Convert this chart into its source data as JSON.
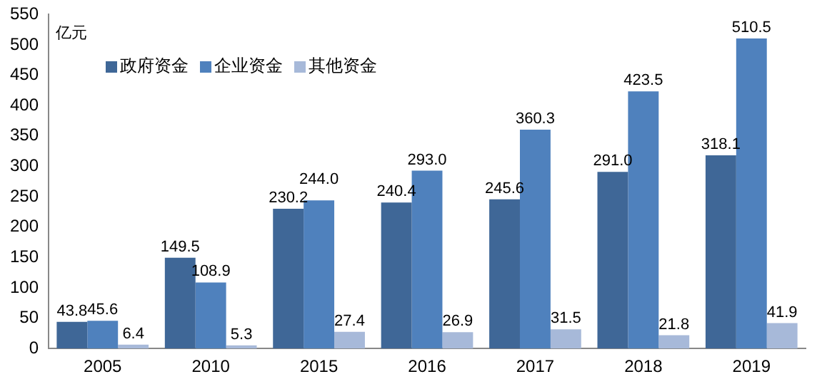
{
  "chart_data": {
    "type": "bar",
    "ylabel": "亿元",
    "categories": [
      "2005",
      "2010",
      "2015",
      "2016",
      "2017",
      "2018",
      "2019"
    ],
    "series": [
      {
        "name": "政府资金",
        "color": "#3f6797",
        "values": [
          43.8,
          149.5,
          230.2,
          240.4,
          245.6,
          291.0,
          318.1
        ],
        "value_labels": [
          "43.8",
          "149.5",
          "230.2",
          "240.4",
          "245.6",
          "291.0",
          "318.1"
        ]
      },
      {
        "name": "企业资金",
        "color": "#4f81bd",
        "values": [
          45.6,
          108.9,
          244.0,
          293.0,
          360.3,
          423.5,
          510.5
        ],
        "value_labels": [
          "45.6",
          "108.9",
          "244.0",
          "293.0",
          "360.3",
          "423.5",
          "510.5"
        ]
      },
      {
        "name": "其他资金",
        "color": "#a7b9d9",
        "values": [
          6.4,
          5.3,
          27.4,
          26.9,
          31.5,
          21.8,
          41.9
        ],
        "value_labels": [
          "6.4",
          "5.3",
          "27.4",
          "26.9",
          "31.5",
          "21.8",
          "41.9"
        ]
      }
    ],
    "ylim": [
      0,
      550
    ],
    "yticks": [
      0,
      50,
      100,
      150,
      200,
      250,
      300,
      350,
      400,
      450,
      500,
      550
    ],
    "grid": false,
    "legend": "top left"
  }
}
